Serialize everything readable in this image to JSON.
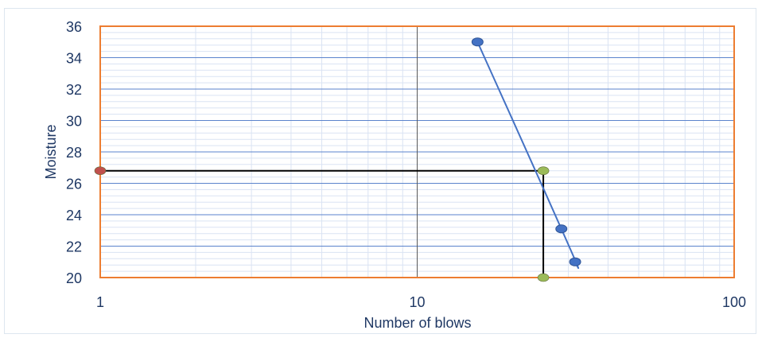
{
  "chart_data": {
    "type": "scatter",
    "xlabel": "Number of blows",
    "ylabel": "Moisture",
    "x_scale": "log",
    "xlim": [
      1,
      100
    ],
    "ylim": [
      20,
      36
    ],
    "x_ticks": [
      "1",
      "10",
      "100"
    ],
    "y_ticks": [
      "20",
      "22",
      "24",
      "26",
      "28",
      "30",
      "32",
      "34",
      "36"
    ],
    "grid": true,
    "colors": {
      "plot_border": "#ed7d31",
      "major_grid": "#4472c4",
      "minor_grid": "#dae3f3",
      "series": "#4472c4",
      "reference_line": "#000000",
      "y_marker": "#c0504d",
      "x_marker": "#9bbb59",
      "text": "#1f3864"
    },
    "series": [
      {
        "values": [
          {
            "x": 15.5,
            "y": 35.0
          },
          {
            "x": 28.5,
            "y": 23.1
          },
          {
            "x": 31.5,
            "y": 21.0
          }
        ],
        "trendline": "smooth curve"
      }
    ],
    "reference": {
      "x": 25,
      "y": 26.8,
      "markers": [
        {
          "x": 1,
          "y": 26.8,
          "color": "#c0504d"
        },
        {
          "x": 25,
          "y": 26.8,
          "color": "#9bbb59"
        },
        {
          "x": 25,
          "y": 20,
          "color": "#9bbb59"
        }
      ]
    }
  }
}
